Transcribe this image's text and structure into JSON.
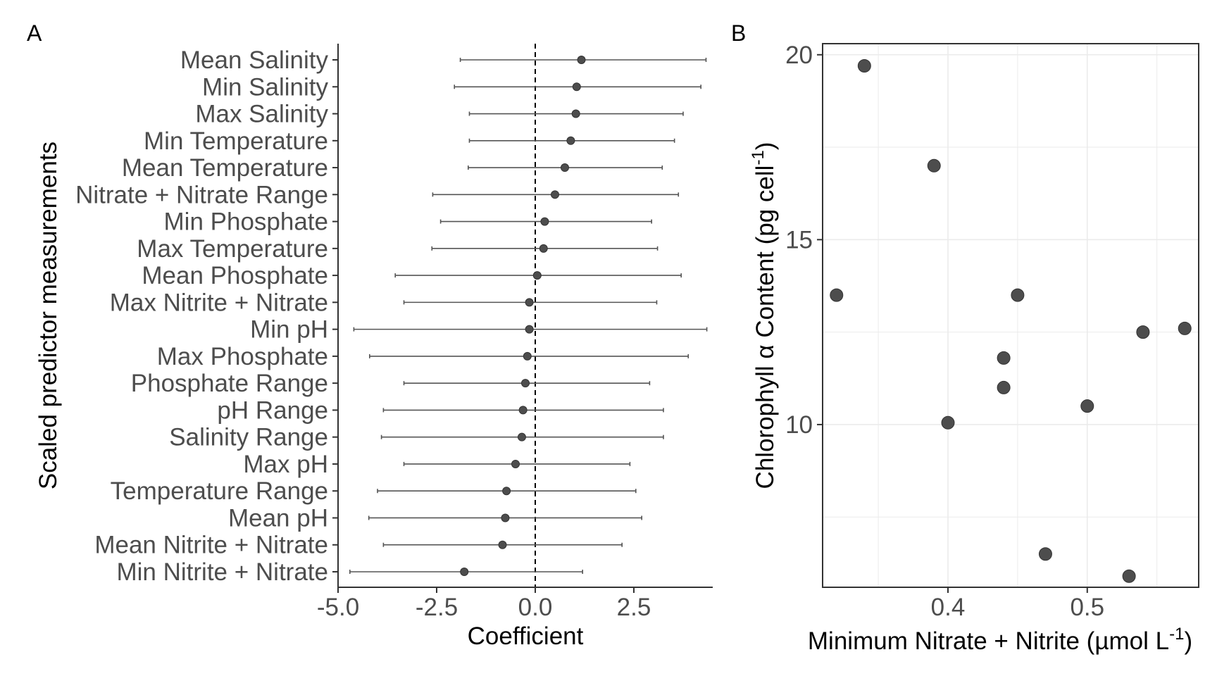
{
  "chart_data": [
    {
      "panel_label": "A",
      "type": "scatter",
      "xlabel": "Coefficient",
      "ylabel": "Scaled predictor measurements",
      "xlim": [
        -5.0,
        4.5
      ],
      "x_ticks": [
        -5.0,
        -2.5,
        0.0,
        2.5
      ],
      "x_tick_labels": [
        "-5.0",
        "-2.5",
        "0.0",
        "2.5"
      ],
      "reference_line_x": 0,
      "grid": false,
      "categories": [
        "Mean Salinity",
        "Min Salinity",
        "Max Salinity",
        "Min Temperature",
        "Mean Temperature",
        "Nitrate + Nitrate Range",
        "Min Phosphate",
        "Max Temperature",
        "Mean Phosphate",
        "Max Nitrite + Nitrate",
        "Min pH",
        "Max Phosphate",
        "Phosphate Range",
        "pH Range",
        "Salinity Range",
        "Max pH",
        "Temperature Range",
        "Mean pH",
        "Mean Nitrite + Nitrate",
        "Min Nitrite + Nitrate"
      ],
      "estimates": [
        1.17,
        1.05,
        1.03,
        0.9,
        0.75,
        0.5,
        0.24,
        0.21,
        0.05,
        -0.15,
        -0.15,
        -0.2,
        -0.25,
        -0.31,
        -0.34,
        -0.5,
        -0.73,
        -0.76,
        -0.83,
        -1.8
      ],
      "lower": [
        -1.9,
        -2.05,
        -1.67,
        -1.67,
        -1.7,
        -2.6,
        -2.4,
        -2.62,
        -3.55,
        -3.33,
        -4.6,
        -4.2,
        -3.33,
        -3.85,
        -3.9,
        -3.33,
        -4.0,
        -4.22,
        -3.85,
        -4.7
      ],
      "upper": [
        4.33,
        4.2,
        3.75,
        3.53,
        3.22,
        3.63,
        2.95,
        3.1,
        3.7,
        3.08,
        4.35,
        3.88,
        2.9,
        3.25,
        3.25,
        2.4,
        2.55,
        2.7,
        2.2,
        1.2
      ]
    },
    {
      "panel_label": "B",
      "type": "scatter",
      "xlabel": "Minimum Nitrate + Nitrite (µmol L",
      "xlabel_sup": "-1",
      "xlabel_end": ")",
      "ylabel": "Chlorophyll α Content (pg cell",
      "ylabel_sup": "-1",
      "ylabel_end": ")",
      "xlim": [
        0.31,
        0.58
      ],
      "ylim": [
        5.6,
        20.3
      ],
      "x_ticks": [
        0.4,
        0.5
      ],
      "x_tick_labels": [
        "0.4",
        "0.5"
      ],
      "y_ticks": [
        10,
        15,
        20
      ],
      "y_tick_labels": [
        "10",
        "15",
        "20"
      ],
      "grid": true,
      "points": [
        {
          "x": 0.34,
          "y": 19.7
        },
        {
          "x": 0.39,
          "y": 17.0
        },
        {
          "x": 0.32,
          "y": 13.5
        },
        {
          "x": 0.45,
          "y": 13.5
        },
        {
          "x": 0.54,
          "y": 12.5
        },
        {
          "x": 0.57,
          "y": 12.6
        },
        {
          "x": 0.44,
          "y": 11.8
        },
        {
          "x": 0.44,
          "y": 11.0
        },
        {
          "x": 0.5,
          "y": 10.5
        },
        {
          "x": 0.4,
          "y": 10.05
        },
        {
          "x": 0.47,
          "y": 6.5
        },
        {
          "x": 0.53,
          "y": 5.9
        }
      ]
    }
  ]
}
